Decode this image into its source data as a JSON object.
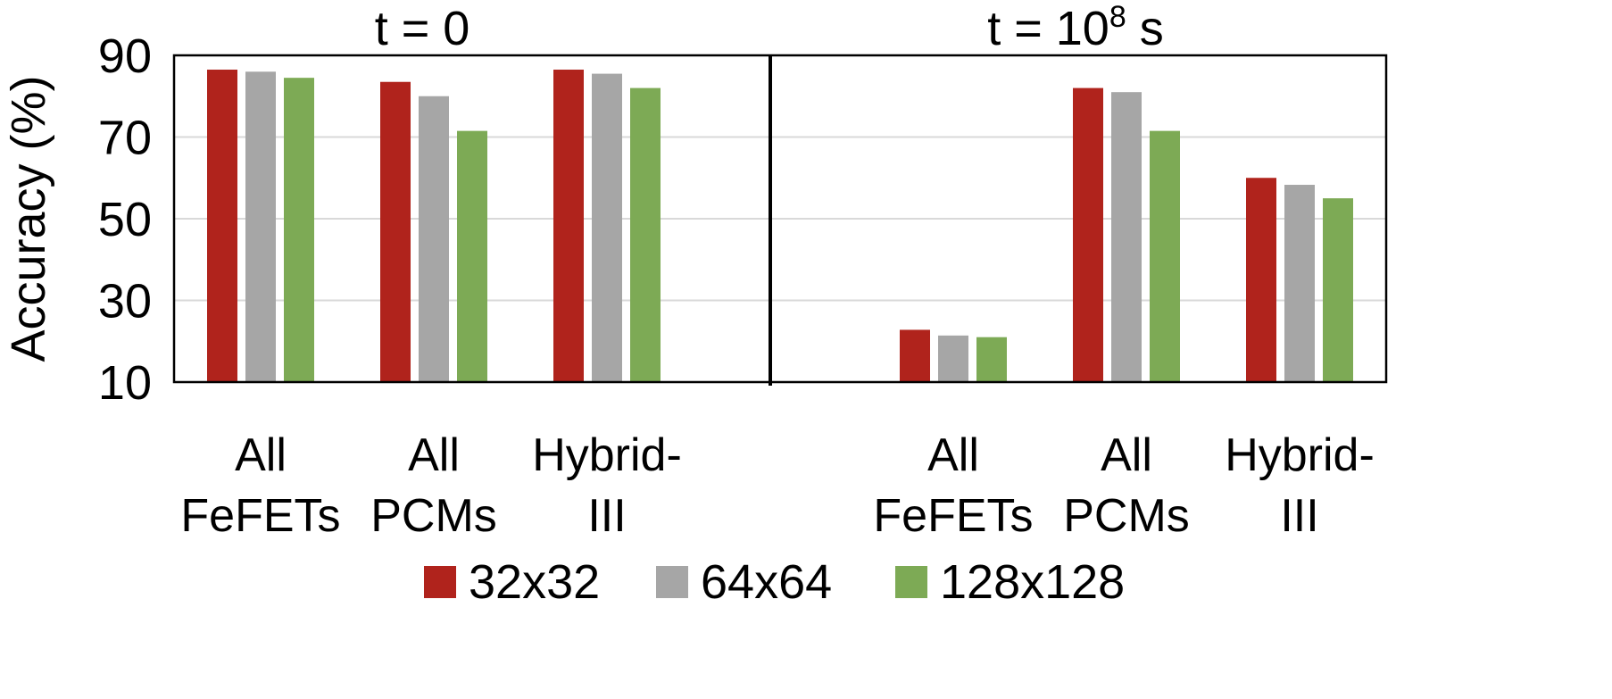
{
  "chart_data": {
    "type": "bar",
    "ylabel": "Accuracy (%)",
    "ylim": [
      10,
      90
    ],
    "yticks": [
      10,
      30,
      50,
      70,
      90
    ],
    "grid": true,
    "legend_position": "bottom",
    "series_meta": [
      {
        "name": "32x32",
        "color": "#B0231C"
      },
      {
        "name": "64x64",
        "color": "#A6A6A6"
      },
      {
        "name": "128x128",
        "color": "#7DAA55"
      }
    ],
    "panels": [
      {
        "title": "t = 0",
        "title_sup": "",
        "title_suffix": "",
        "categories": [
          {
            "line1": "All",
            "line2": "FeFETs"
          },
          {
            "line1": "All",
            "line2": "PCMs"
          },
          {
            "line1": "Hybrid-",
            "line2": "III"
          }
        ],
        "series": [
          {
            "name": "32x32",
            "values": [
              86.5,
              83.5,
              86.5
            ]
          },
          {
            "name": "64x64",
            "values": [
              86.0,
              80.0,
              85.5
            ]
          },
          {
            "name": "128x128",
            "values": [
              84.5,
              71.5,
              82.0
            ]
          }
        ]
      },
      {
        "title": "t = 10",
        "title_sup": "8",
        "title_suffix": " s",
        "categories": [
          {
            "line1": "All",
            "line2": "FeFETs"
          },
          {
            "line1": "All",
            "line2": "PCMs"
          },
          {
            "line1": "Hybrid-",
            "line2": "III"
          }
        ],
        "series": [
          {
            "name": "32x32",
            "values": [
              22.8,
              82.0,
              60.0
            ]
          },
          {
            "name": "64x64",
            "values": [
              21.4,
              81.0,
              58.3
            ]
          },
          {
            "name": "128x128",
            "values": [
              21.0,
              71.5,
              55.0
            ]
          }
        ]
      }
    ]
  }
}
